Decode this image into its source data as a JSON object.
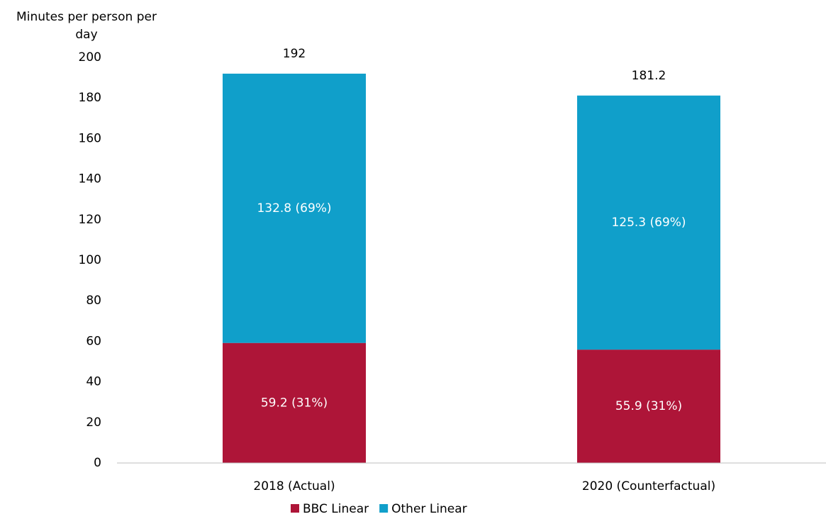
{
  "chart_data": {
    "type": "stacked_bar",
    "y_axis_label": "Minutes per person per day",
    "categories": [
      "2018 (Actual)",
      "2020 (Counterfactual)"
    ],
    "series": [
      {
        "name": "BBC Linear",
        "color": "#ae1538",
        "values": [
          59.2,
          55.9
        ],
        "value_labels": [
          "59.2 (31%)",
          "55.9 (31%)"
        ]
      },
      {
        "name": "Other Linear",
        "color": "#109fca",
        "values": [
          132.8,
          125.3
        ],
        "value_labels": [
          "132.8 (69%)",
          "125.3 (69%)"
        ]
      }
    ],
    "totals": [
      192,
      181.2
    ],
    "ylim": [
      0,
      200
    ],
    "yticks": [
      0,
      20,
      40,
      60,
      80,
      100,
      120,
      140,
      160,
      180,
      200
    ],
    "grid": false,
    "legend": "bottom"
  }
}
